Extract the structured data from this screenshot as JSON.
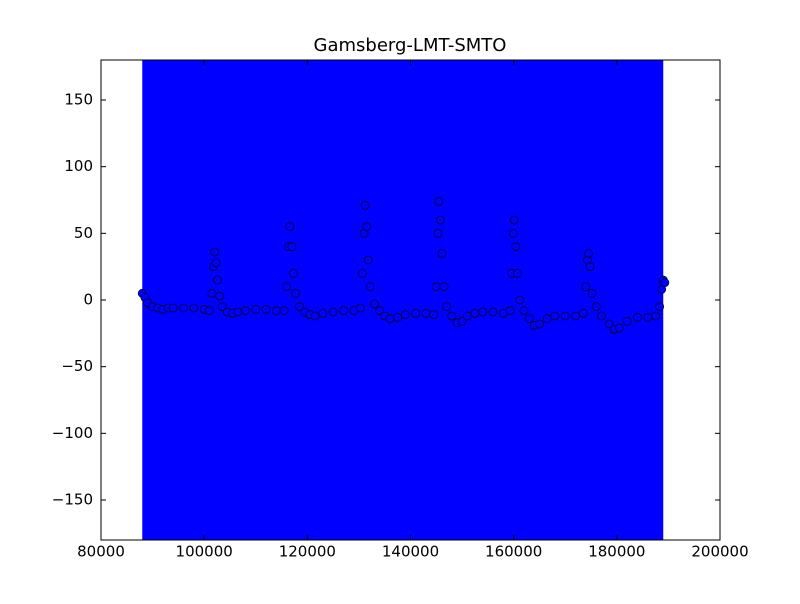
{
  "chart_data": {
    "type": "scatter",
    "title": "Gamsberg-LMT-SMTO",
    "span_x": [
      88000,
      189000
    ],
    "span_color": "#0000ff",
    "marker_color": "#0000ff",
    "marker_edge": "#000033",
    "xlim": [
      80000,
      200000
    ],
    "xticks": [
      80000,
      100000,
      120000,
      140000,
      160000,
      180000,
      200000
    ],
    "ylim": [
      -180,
      180
    ],
    "yticks": [
      {
        "value": -150,
        "label": "−150"
      },
      {
        "value": -100,
        "label": "−100"
      },
      {
        "value": -50,
        "label": "−50"
      },
      0,
      50,
      100,
      150
    ],
    "x": [
      88000,
      88500,
      89000,
      90000,
      91000,
      92000,
      93000,
      94000,
      96000,
      98000,
      100000,
      101000,
      101500,
      101800,
      102000,
      102300,
      102600,
      103000,
      103500,
      104500,
      105500,
      106500,
      108000,
      110000,
      112000,
      114000,
      115500,
      116000,
      116300,
      116600,
      117000,
      117300,
      117700,
      118500,
      119500,
      120500,
      121500,
      123000,
      125000,
      127000,
      129000,
      130300,
      130700,
      131000,
      131200,
      131500,
      131800,
      132200,
      133000,
      134000,
      135000,
      136000,
      137500,
      139000,
      141000,
      143000,
      144500,
      145000,
      145300,
      145500,
      145800,
      146100,
      146500,
      147000,
      148000,
      149000,
      150000,
      151000,
      152500,
      154000,
      156000,
      158000,
      159300,
      159600,
      159900,
      160100,
      160400,
      160700,
      161200,
      162000,
      163000,
      164000,
      165000,
      166500,
      168000,
      170000,
      172000,
      173500,
      174000,
      174300,
      174500,
      174800,
      175200,
      176000,
      177000,
      178500,
      179500,
      180500,
      182000,
      184000,
      186000,
      187500,
      188300,
      188700,
      189000,
      189300
    ],
    "values": [
      5,
      2,
      -2,
      -5,
      -6,
      -7,
      -6,
      -6,
      -6,
      -6,
      -7,
      -8,
      5,
      25,
      36,
      28,
      15,
      3,
      -5,
      -9,
      -10,
      -9,
      -8,
      -7,
      -7,
      -8,
      -8,
      10,
      40,
      55,
      40,
      20,
      5,
      -5,
      -9,
      -11,
      -12,
      -10,
      -9,
      -8,
      -8,
      -6,
      20,
      50,
      71,
      55,
      30,
      10,
      -3,
      -8,
      -12,
      -14,
      -13,
      -11,
      -10,
      -10,
      -11,
      10,
      50,
      74,
      60,
      35,
      10,
      -5,
      -12,
      -17,
      -16,
      -12,
      -10,
      -9,
      -9,
      -10,
      -8,
      20,
      50,
      60,
      40,
      20,
      0,
      -8,
      -14,
      -19,
      -18,
      -14,
      -12,
      -12,
      -12,
      -10,
      10,
      30,
      35,
      25,
      5,
      -5,
      -12,
      -18,
      -22,
      -21,
      -16,
      -13,
      -13,
      -12,
      -5,
      8,
      15,
      13
    ]
  }
}
